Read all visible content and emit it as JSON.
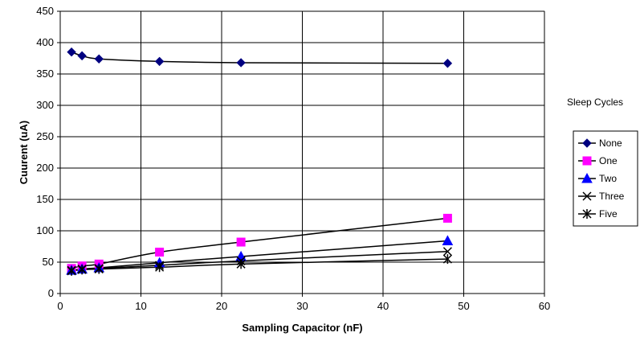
{
  "chart_data": {
    "type": "line",
    "title": "",
    "xlabel": "Sampling Capacitor (nF)",
    "ylabel": "Cuurent (uA)",
    "xlim": [
      0,
      60
    ],
    "ylim": [
      0,
      450
    ],
    "xticks": [
      0,
      10,
      20,
      30,
      40,
      50,
      60
    ],
    "yticks": [
      0,
      50,
      100,
      150,
      200,
      250,
      300,
      350,
      400,
      450
    ],
    "grid": true,
    "legend_title": "Sleep Cycles",
    "legend_position": "right",
    "x": [
      1.4,
      2.7,
      4.8,
      12.3,
      22.4,
      48
    ],
    "series": [
      {
        "name": "None",
        "marker": "diamond",
        "color": "#000080",
        "values": [
          385,
          379,
          374,
          370,
          368,
          367
        ]
      },
      {
        "name": "One",
        "marker": "square",
        "color": "#ff00ff",
        "values": [
          40,
          44,
          47,
          66,
          82,
          120
        ]
      },
      {
        "name": "Two",
        "marker": "triangle",
        "color": "#0000ff",
        "values": [
          37,
          39,
          41,
          49,
          59,
          84
        ]
      },
      {
        "name": "Three",
        "marker": "x",
        "color": "#000000",
        "values": [
          37,
          39,
          40,
          45,
          52,
          67
        ]
      },
      {
        "name": "Five",
        "marker": "star",
        "color": "#000000",
        "values": [
          36,
          38,
          39,
          42,
          47,
          55
        ]
      }
    ]
  }
}
